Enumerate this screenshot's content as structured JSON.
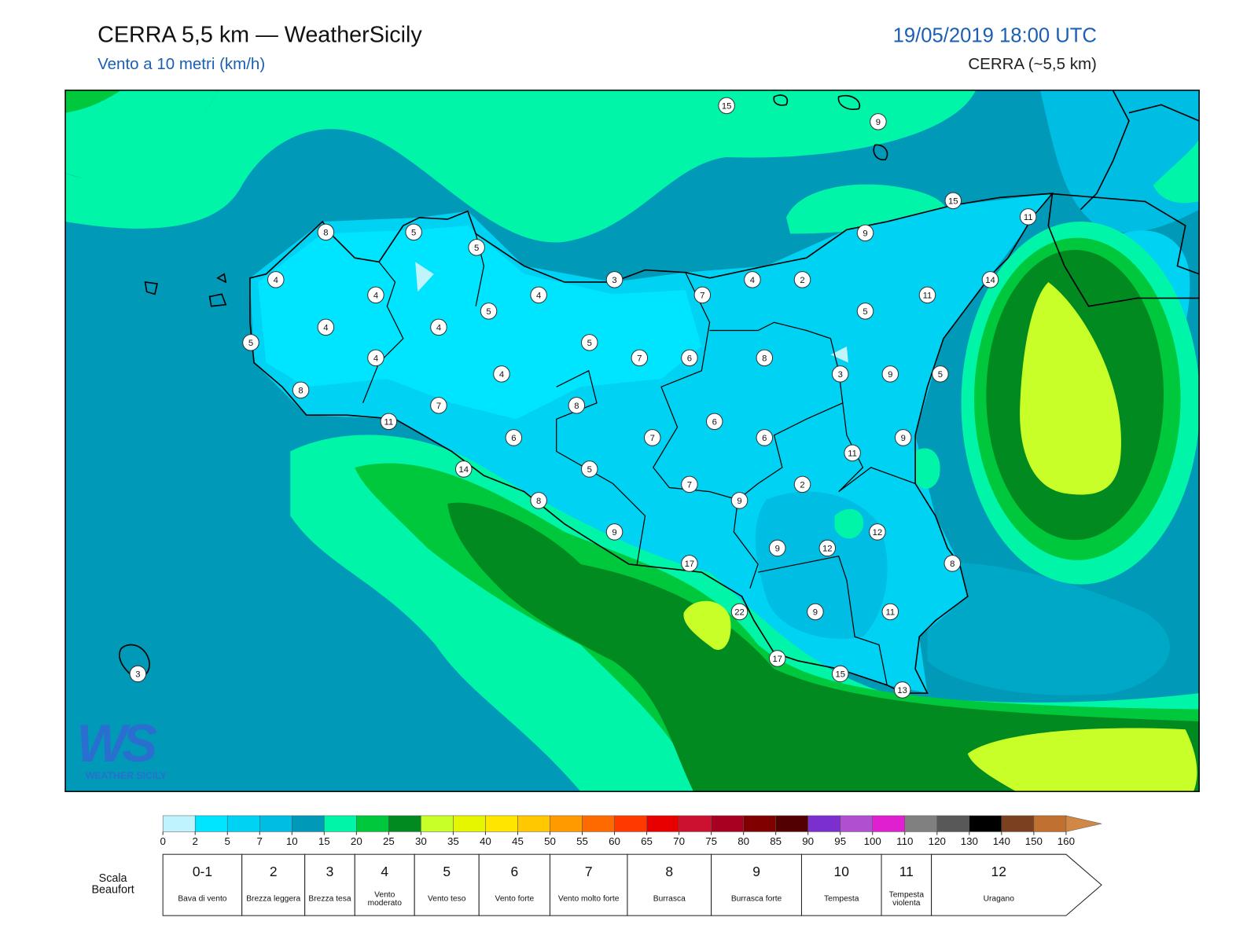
{
  "header": {
    "title": "CERRA 5,5 km — WeatherSicily",
    "subtitle": "Vento a 10 metri (km/h)",
    "datetime": "19/05/2019 18:00 UTC",
    "model": "CERRA (~5,5 km)"
  },
  "stations": [
    15,
    9,
    15,
    11,
    8,
    5,
    9,
    5,
    3,
    4,
    2,
    14,
    4,
    4,
    4,
    7,
    11,
    5,
    5,
    4,
    4,
    5,
    5,
    7,
    6,
    8,
    4,
    3,
    9,
    5,
    4,
    8,
    7,
    8,
    11,
    6,
    6,
    7,
    6,
    9,
    11,
    14,
    5,
    2,
    7,
    9,
    8,
    9,
    12,
    9,
    12,
    17,
    8,
    22,
    9,
    11,
    17,
    15,
    13,
    3
  ],
  "logo": {
    "mark": "WS",
    "text": "WEATHER SICILY"
  },
  "colorbar": {
    "ticks": [
      0,
      2,
      5,
      7,
      10,
      15,
      20,
      25,
      30,
      35,
      40,
      45,
      50,
      55,
      60,
      65,
      70,
      75,
      80,
      85,
      90,
      95,
      100,
      110,
      120,
      130,
      140,
      150,
      160
    ],
    "colors": [
      "#bff4fc",
      "#00e5ff",
      "#00d2f3",
      "#00bde4",
      "#0099b8",
      "#00f5a8",
      "#00c83c",
      "#008a20",
      "#c8ff28",
      "#e6f500",
      "#ffe600",
      "#ffc800",
      "#ff9a00",
      "#ff6a00",
      "#ff3a00",
      "#e80000",
      "#cc1030",
      "#a80020",
      "#800000",
      "#520000",
      "#7b2fcf",
      "#b050d0",
      "#e020d0",
      "#808080",
      "#585858",
      "#000000",
      "#7a4020",
      "#c07030",
      "#d08844"
    ]
  },
  "beaufort": {
    "label": "Scala Beaufort",
    "levels": [
      {
        "force": "0-1",
        "name": "Bava di vento"
      },
      {
        "force": 2,
        "name": "Brezza leggera"
      },
      {
        "force": 3,
        "name": "Brezza tesa"
      },
      {
        "force": 4,
        "name": "Vento moderato"
      },
      {
        "force": 5,
        "name": "Vento teso"
      },
      {
        "force": 6,
        "name": "Vento forte"
      },
      {
        "force": 7,
        "name": "Vento molto forte"
      },
      {
        "force": 8,
        "name": "Burrasca"
      },
      {
        "force": 9,
        "name": "Burrasca forte"
      },
      {
        "force": 10,
        "name": "Tempesta"
      },
      {
        "force": 11,
        "name": "Tempesta violenta"
      },
      {
        "force": 12,
        "name": "Uragano"
      }
    ]
  }
}
